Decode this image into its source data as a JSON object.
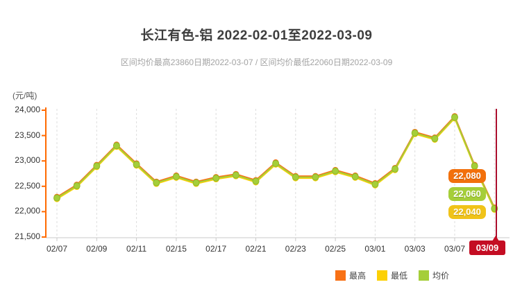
{
  "header": {
    "title": "长江有色-铝 2022-02-01至2022-03-09",
    "subtitle": "区间均价最高23860日期2022-03-07 / 区间均价最低22060日期2022-03-09"
  },
  "axis": {
    "unit_label": "(元/吨)",
    "y_ticks": [
      "24,000",
      "23,500",
      "23,000",
      "22,500",
      "22,000",
      "21,500"
    ],
    "x_ticks": [
      "02/07",
      "02/09",
      "02/11",
      "02/15",
      "02/17",
      "02/21",
      "02/23",
      "02/25",
      "03/01",
      "03/03",
      "03/07",
      "03/09"
    ]
  },
  "chart_data": {
    "type": "line",
    "title": "长江有色-铝 2022-02-01至2022-03-09",
    "ylabel": "(元/吨)",
    "ylim": [
      21500,
      24000
    ],
    "y_tick_step": 500,
    "grid": "vertical-dashed",
    "legend_position": "bottom-right",
    "x": [
      "02/07",
      "02/08",
      "02/09",
      "02/10",
      "02/11",
      "02/14",
      "02/15",
      "02/16",
      "02/17",
      "02/18",
      "02/21",
      "02/22",
      "02/23",
      "02/24",
      "02/25",
      "02/28",
      "03/01",
      "03/02",
      "03/03",
      "03/04",
      "03/07",
      "03/08",
      "03/09"
    ],
    "x_tick_labels": [
      "02/07",
      "02/09",
      "02/11",
      "02/15",
      "02/17",
      "02/21",
      "02/23",
      "02/25",
      "03/01",
      "03/03",
      "03/07",
      "03/09"
    ],
    "series": [
      {
        "name": "最高",
        "color": "#f87115",
        "values": [
          22290,
          22530,
          22920,
          23320,
          22950,
          22590,
          22710,
          22590,
          22680,
          22740,
          22620,
          22970,
          22700,
          22700,
          22820,
          22710,
          22560,
          22860,
          23570,
          23460,
          23880,
          22920,
          22080
        ]
      },
      {
        "name": "最低",
        "color": "#fcd005",
        "values": [
          22250,
          22490,
          22880,
          23280,
          22910,
          22550,
          22670,
          22550,
          22640,
          22700,
          22580,
          22930,
          22660,
          22660,
          22780,
          22670,
          22520,
          22820,
          23530,
          23420,
          23840,
          22880,
          22040
        ]
      },
      {
        "name": "均价",
        "color": "#a5ce39",
        "values": [
          22270,
          22510,
          22900,
          23300,
          22930,
          22570,
          22690,
          22570,
          22660,
          22720,
          22600,
          22950,
          22680,
          22680,
          22800,
          22690,
          22540,
          22840,
          23550,
          23440,
          23860,
          22900,
          22060
        ]
      }
    ],
    "annotations": {
      "end_labels": [
        {
          "text": "22,080",
          "series": "最高",
          "color": "#f2700c"
        },
        {
          "text": "22,060",
          "series": "均价",
          "color": "#a5ce39"
        },
        {
          "text": "22,040",
          "series": "最低",
          "color": "#f0c319"
        }
      ],
      "highlight_date": {
        "text": "03/09",
        "badge_color": "#c40d23",
        "line_color": "#ab0e2d"
      }
    },
    "axis_colors": {
      "y_axis": "#ff6a00",
      "x_axis": "#c9c9c9",
      "grid": "#dddddd"
    }
  }
}
